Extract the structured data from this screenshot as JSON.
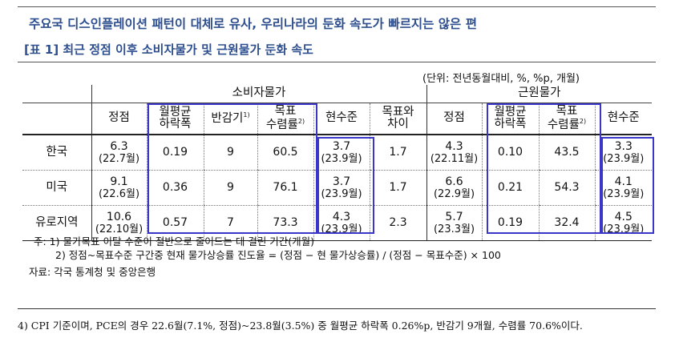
{
  "headline": "주요국 디스인플레이션 패턴이 대체로 유사, 우리나라의 둔화 속도가 빠르지는 않은 편",
  "table_title": "[표 1] 최근 정점 이후 소비자물가 및 근원물가 둔화 속도",
  "unit": "(단위: 전년동월대비, %, %p, 개월)",
  "groups": {
    "cpi": "소비자물가",
    "core": "근원물가"
  },
  "columns": {
    "peak": "정점",
    "monthly_decline_1": "월평균",
    "monthly_decline_2": "하락폭",
    "half_life": "반감기",
    "half_life_sup": "1)",
    "conv_1": "목표",
    "conv_2": "수렴률",
    "conv_sup": "2)",
    "current": "현수준",
    "gap_1": "목표와",
    "gap_2": "차이"
  },
  "rows": [
    {
      "country": "한국",
      "cpi": {
        "peak": "6.3",
        "peak_date": "(22.7월)",
        "decline": "0.19",
        "half_life": "9",
        "conv": "60.5",
        "current": "3.7",
        "current_date": "(23.9월)",
        "gap": "1.7"
      },
      "core": {
        "peak": "4.3",
        "peak_date": "(22.11월)",
        "decline": "0.10",
        "conv": "43.5",
        "current": "3.3",
        "current_date": "(23.9월)"
      }
    },
    {
      "country": "미국",
      "cpi": {
        "peak": "9.1",
        "peak_date": "(22.6월)",
        "decline": "0.36",
        "half_life": "9",
        "conv": "76.1",
        "current": "3.7",
        "current_date": "(23.9월)",
        "gap": "1.7"
      },
      "core": {
        "peak": "6.6",
        "peak_date": "(22.9월)",
        "decline": "0.21",
        "conv": "54.3",
        "current": "4.1",
        "current_date": "(23.9월)"
      }
    },
    {
      "country": "유로지역",
      "cpi": {
        "peak": "10.6",
        "peak_date": "(22.10월)",
        "decline": "0.57",
        "half_life": "7",
        "conv": "73.3",
        "current": "4.3",
        "current_date": "(23.9월)",
        "gap": "2.3"
      },
      "core": {
        "peak": "5.7",
        "peak_date": "(23.3월)",
        "decline": "0.19",
        "conv": "32.4",
        "current": "4.5",
        "current_date": "(23.9월)"
      }
    }
  ],
  "notes": {
    "n1": "주: 1) 물가목표 이탈 수준이 절반으로 줄어드는 데 걸린 기간(개월)",
    "n2": "2) 정점~목표수준 구간중 현재 물가상승률 진도율 = (정점 − 현 물가상승률) / (정점 − 목표수준) × 100",
    "source": "자료: 각국 통계청 및 중앙은행"
  },
  "footnote": "4) CPI 기준이며, PCE의 경우 22.6월(7.1%, 정점)~23.8월(3.5%) 중 월평균 하락폭 0.26%p, 반감기 9개월, 수렴률 70.6%이다.",
  "colors": {
    "title": "#2e4f8f",
    "highlight_border": "#3a36c9"
  }
}
